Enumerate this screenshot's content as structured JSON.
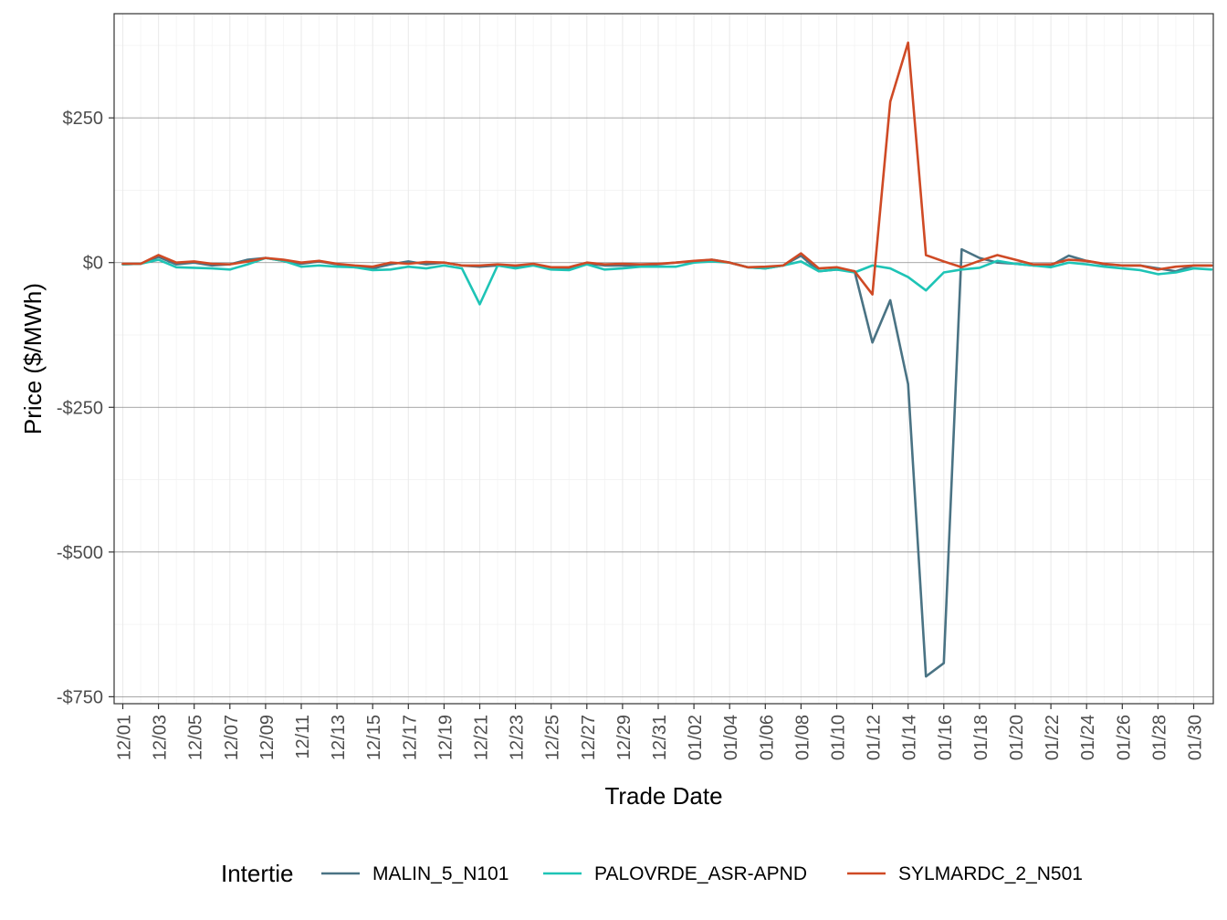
{
  "chart_data": {
    "type": "line",
    "xlabel": "Trade Date",
    "ylabel": "Price ($/MWh)",
    "x_tick_labels": [
      "12/01",
      "12/03",
      "12/05",
      "12/07",
      "12/09",
      "12/11",
      "12/13",
      "12/15",
      "12/17",
      "12/19",
      "12/21",
      "12/23",
      "12/25",
      "12/27",
      "12/29",
      "12/31",
      "01/02",
      "01/04",
      "01/06",
      "01/08",
      "01/10",
      "01/12",
      "01/14",
      "01/16",
      "01/18",
      "01/20",
      "01/22",
      "01/24",
      "01/26",
      "01/28",
      "01/30"
    ],
    "y_ticks": [
      250,
      0,
      -250,
      -500,
      -750
    ],
    "y_tick_labels": [
      "$250",
      "$0",
      "-$250",
      "-$500",
      "-$750"
    ],
    "ylim": [
      -762,
      430
    ],
    "grid": true,
    "legend": {
      "title": "Intertie",
      "position": "bottom"
    },
    "x": [
      "12/01",
      "12/02",
      "12/03",
      "12/04",
      "12/05",
      "12/06",
      "12/07",
      "12/08",
      "12/09",
      "12/10",
      "12/11",
      "12/12",
      "12/13",
      "12/14",
      "12/15",
      "12/16",
      "12/17",
      "12/18",
      "12/19",
      "12/20",
      "12/21",
      "12/22",
      "12/23",
      "12/24",
      "12/25",
      "12/26",
      "12/27",
      "12/28",
      "12/29",
      "12/30",
      "12/31",
      "01/01",
      "01/02",
      "01/03",
      "01/04",
      "01/05",
      "01/06",
      "01/07",
      "01/08",
      "01/09",
      "01/10",
      "01/11",
      "01/12",
      "01/13",
      "01/14",
      "01/15",
      "01/16",
      "01/17",
      "01/18",
      "01/19",
      "01/20",
      "01/21",
      "01/22",
      "01/23",
      "01/24",
      "01/25",
      "01/26",
      "01/27",
      "01/28",
      "01/29",
      "01/30",
      "01/31"
    ],
    "series": [
      {
        "name": "MALIN_5_N101",
        "color": "#4a7384",
        "values": [
          -3,
          -2,
          10,
          -3,
          0,
          -5,
          -3,
          5,
          8,
          3,
          -2,
          2,
          -3,
          -8,
          -10,
          -3,
          2,
          -3,
          0,
          -5,
          -7,
          -5,
          -8,
          -3,
          -10,
          -10,
          -2,
          -5,
          -5,
          -5,
          -3,
          0,
          2,
          5,
          0,
          -8,
          -10,
          -5,
          12,
          -15,
          -12,
          -15,
          -138,
          -65,
          -210,
          -715,
          -692,
          23,
          8,
          0,
          -2,
          -5,
          -5,
          12,
          3,
          -3,
          -5,
          -5,
          -10,
          -15,
          -5,
          -5
        ]
      },
      {
        "name": "PALOVRDE_ASR-APND",
        "color": "#1ec4b6",
        "values": [
          -3,
          -2,
          5,
          -8,
          -9,
          -10,
          -12,
          -3,
          8,
          3,
          -7,
          -5,
          -7,
          -8,
          -13,
          -12,
          -7,
          -10,
          -5,
          -10,
          -72,
          -5,
          -10,
          -5,
          -12,
          -13,
          -3,
          -12,
          -10,
          -7,
          -7,
          -7,
          0,
          2,
          0,
          -8,
          -10,
          -5,
          2,
          -15,
          -12,
          -17,
          -5,
          -10,
          -25,
          -48,
          -17,
          -12,
          -9,
          3,
          -2,
          -5,
          -8,
          0,
          -3,
          -7,
          -10,
          -13,
          -20,
          -17,
          -10,
          -12
        ]
      },
      {
        "name": "SYLMARDC_2_N501",
        "color": "#cf4a25",
        "values": [
          -2,
          -2,
          13,
          0,
          2,
          -2,
          -3,
          2,
          8,
          5,
          0,
          3,
          -2,
          -5,
          -7,
          0,
          -2,
          1,
          0,
          -5,
          -5,
          -3,
          -5,
          -2,
          -8,
          -8,
          0,
          -3,
          -2,
          -3,
          -2,
          0,
          3,
          5,
          0,
          -8,
          -7,
          -5,
          16,
          -10,
          -8,
          -15,
          -55,
          278,
          380,
          13,
          2,
          -8,
          3,
          13,
          5,
          -3,
          -3,
          5,
          3,
          -2,
          -5,
          -5,
          -12,
          -7,
          -5,
          -5
        ]
      }
    ]
  }
}
